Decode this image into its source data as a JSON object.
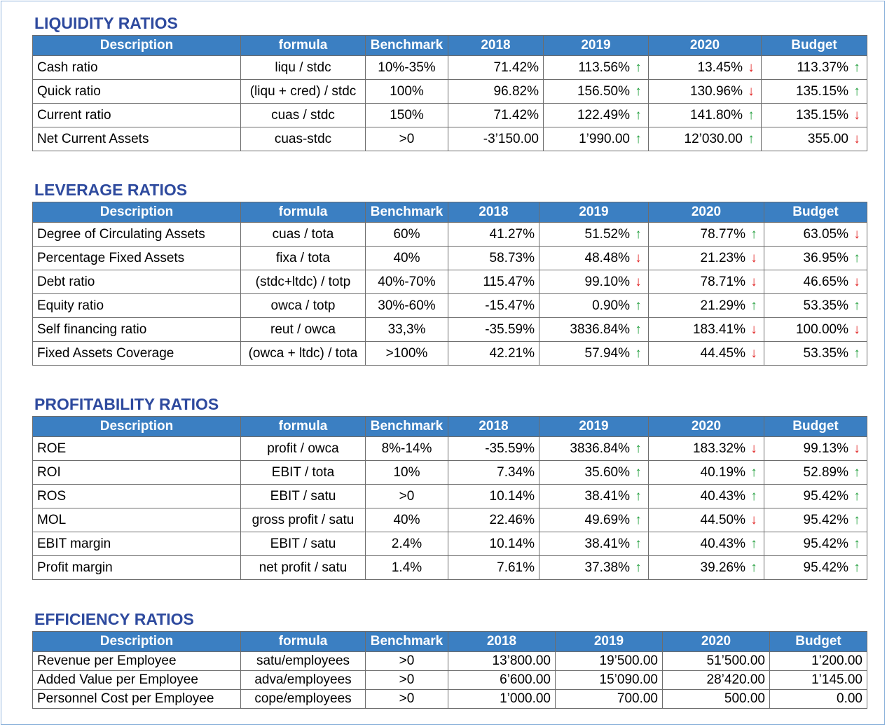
{
  "headers": [
    "Description",
    "formula",
    "Benchmark",
    "2018",
    "2019",
    "2020",
    "Budget"
  ],
  "colors": {
    "title": "#2e4a9e",
    "header_bg": "#3b7fc2",
    "up": "#1f9d3a",
    "down": "#e02020"
  },
  "sections": [
    {
      "title": "LIQUIDITY RATIOS",
      "rows": [
        {
          "desc": "Cash ratio",
          "formula": "liqu / stdc",
          "bench": "10%-35%",
          "y2018": "71.42%",
          "y2019": "113.56%",
          "a2019": "up",
          "y2020": "13.45%",
          "a2020": "down",
          "budget": "113.37%",
          "abudget": "up"
        },
        {
          "desc": "Quick ratio",
          "formula": "(liqu + cred) / stdc",
          "bench": "100%",
          "y2018": "96.82%",
          "y2019": "156.50%",
          "a2019": "up",
          "y2020": "130.96%",
          "a2020": "down",
          "budget": "135.15%",
          "abudget": "up"
        },
        {
          "desc": "Current ratio",
          "formula": "cuas / stdc",
          "bench": "150%",
          "y2018": "71.42%",
          "y2019": "122.49%",
          "a2019": "up",
          "y2020": "141.80%",
          "a2020": "up",
          "budget": "135.15%",
          "abudget": "down"
        },
        {
          "desc": "Net Current Assets",
          "formula": "cuas-stdc",
          "bench": ">0",
          "y2018": "-3’150.00",
          "y2019": "1’990.00",
          "a2019": "up",
          "y2020": "12’030.00",
          "a2020": "up",
          "budget": "355.00",
          "abudget": "down"
        }
      ]
    },
    {
      "title": "LEVERAGE RATIOS",
      "rows": [
        {
          "desc": "Degree of Circulating Assets",
          "formula": "cuas / tota",
          "bench": "60%",
          "y2018": "41.27%",
          "y2019": "51.52%",
          "a2019": "up",
          "y2020": "78.77%",
          "a2020": "up",
          "budget": "63.05%",
          "abudget": "down"
        },
        {
          "desc": "Percentage Fixed Assets",
          "formula": "fixa / tota",
          "bench": "40%",
          "y2018": "58.73%",
          "y2019": "48.48%",
          "a2019": "down",
          "y2020": "21.23%",
          "a2020": "down",
          "budget": "36.95%",
          "abudget": "up"
        },
        {
          "desc": "Debt ratio",
          "formula": "(stdc+ltdc) / totp",
          "bench": "40%-70%",
          "y2018": "115.47%",
          "y2019": "99.10%",
          "a2019": "down",
          "y2020": "78.71%",
          "a2020": "down",
          "budget": "46.65%",
          "abudget": "down"
        },
        {
          "desc": "Equity ratio",
          "formula": "owca / totp",
          "bench": "30%-60%",
          "y2018": "-15.47%",
          "y2019": "0.90%",
          "a2019": "up",
          "y2020": "21.29%",
          "a2020": "up",
          "budget": "53.35%",
          "abudget": "up"
        },
        {
          "desc": "Self financing ratio",
          "formula": "reut / owca",
          "bench": "33,3%",
          "y2018": "-35.59%",
          "y2019": "3836.84%",
          "a2019": "up",
          "y2020": "183.41%",
          "a2020": "down",
          "budget": "100.00%",
          "abudget": "down"
        },
        {
          "desc": "Fixed Assets Coverage",
          "formula": "(owca + ltdc) / tota",
          "bench": ">100%",
          "y2018": "42.21%",
          "y2019": "57.94%",
          "a2019": "up",
          "y2020": "44.45%",
          "a2020": "down",
          "budget": "53.35%",
          "abudget": "up"
        }
      ]
    },
    {
      "title": "PROFITABILITY RATIOS",
      "rows": [
        {
          "desc": "ROE",
          "formula": "profit / owca",
          "bench": "8%-14%",
          "y2018": "-35.59%",
          "y2019": "3836.84%",
          "a2019": "up",
          "y2020": "183.32%",
          "a2020": "down",
          "budget": "99.13%",
          "abudget": "down"
        },
        {
          "desc": "ROI",
          "formula": "EBIT / tota",
          "bench": "10%",
          "y2018": "7.34%",
          "y2019": "35.60%",
          "a2019": "up",
          "y2020": "40.19%",
          "a2020": "up",
          "budget": "52.89%",
          "abudget": "up"
        },
        {
          "desc": "ROS",
          "formula": "EBIT / satu",
          "bench": ">0",
          "y2018": "10.14%",
          "y2019": "38.41%",
          "a2019": "up",
          "y2020": "40.43%",
          "a2020": "up",
          "budget": "95.42%",
          "abudget": "up"
        },
        {
          "desc": "MOL",
          "formula": "gross profit / satu",
          "bench": "40%",
          "y2018": "22.46%",
          "y2019": "49.69%",
          "a2019": "up",
          "y2020": "44.50%",
          "a2020": "down",
          "budget": "95.42%",
          "abudget": "up"
        },
        {
          "desc": "EBIT margin",
          "formula": "EBIT / satu",
          "bench": "2.4%",
          "y2018": "10.14%",
          "y2019": "38.41%",
          "a2019": "up",
          "y2020": "40.43%",
          "a2020": "up",
          "budget": "95.42%",
          "abudget": "up"
        },
        {
          "desc": "Profit margin",
          "formula": "net profit / satu",
          "bench": "1.4%",
          "y2018": "7.61%",
          "y2019": "37.38%",
          "a2019": "up",
          "y2020": "39.26%",
          "a2020": "up",
          "budget": "95.42%",
          "abudget": "up"
        }
      ]
    },
    {
      "title": "EFFICIENCY RATIOS",
      "rows": [
        {
          "desc": "Revenue per Employee",
          "formula": "satu/employees",
          "bench": ">0",
          "y2018": "13’800.00",
          "y2019": "19’500.00",
          "y2020": "51’500.00",
          "budget": "1’200.00"
        },
        {
          "desc": "Added Value per Employee",
          "formula": "adva/employees",
          "bench": ">0",
          "y2018": "6’600.00",
          "y2019": "15’090.00",
          "y2020": "28’420.00",
          "budget": "1’145.00"
        },
        {
          "desc": "Personnel Cost per Employee",
          "formula": "cope/employees",
          "bench": ">0",
          "y2018": "1’000.00",
          "y2019": "700.00",
          "y2020": "500.00",
          "budget": "0.00"
        }
      ]
    }
  ]
}
